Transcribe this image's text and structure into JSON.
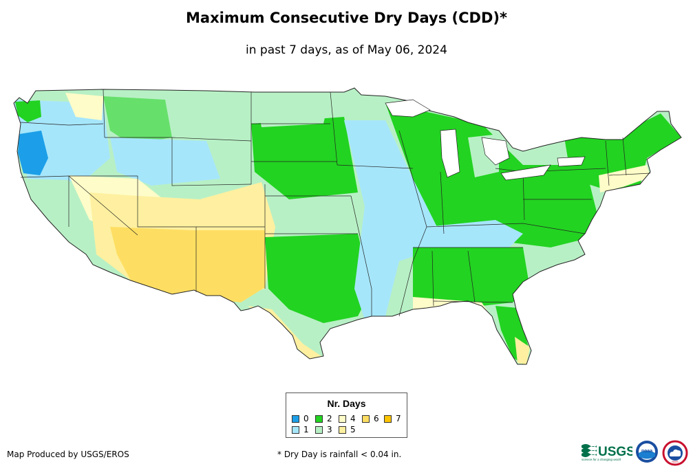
{
  "header": {
    "title": "Maximum Consecutive Dry Days (CDD)*",
    "subtitle": "in past 7 days, as of May 06, 2024"
  },
  "colors": {
    "d0": "#1c9fe8",
    "d1": "#a6e6fb",
    "d2": "#22d321",
    "d3": "#b8f0c5",
    "d4": "#fefcc8",
    "d5": "#fef0a0",
    "d6": "#fede62",
    "d7": "#fdc400",
    "border": "#222222"
  },
  "legend": {
    "title": "Nr. Days",
    "items": [
      {
        "label": "0",
        "color": "#1c9fe8"
      },
      {
        "label": "1",
        "color": "#a6e6fb"
      },
      {
        "label": "2",
        "color": "#22d321"
      },
      {
        "label": "3",
        "color": "#b8f0c5"
      },
      {
        "label": "4",
        "color": "#fefcc8"
      },
      {
        "label": "5",
        "color": "#fef0a0"
      },
      {
        "label": "6",
        "color": "#fede62"
      },
      {
        "label": "7",
        "color": "#fdc400"
      }
    ]
  },
  "footer": {
    "credit": "Map Produced by USGS/EROS",
    "footnote": "* Dry Day is rainfall < 0.04 in.",
    "logos": {
      "usgs": "USGS",
      "usgs_tagline": "science for a changing world",
      "noaa": "noaa",
      "nws": "NWS"
    }
  }
}
